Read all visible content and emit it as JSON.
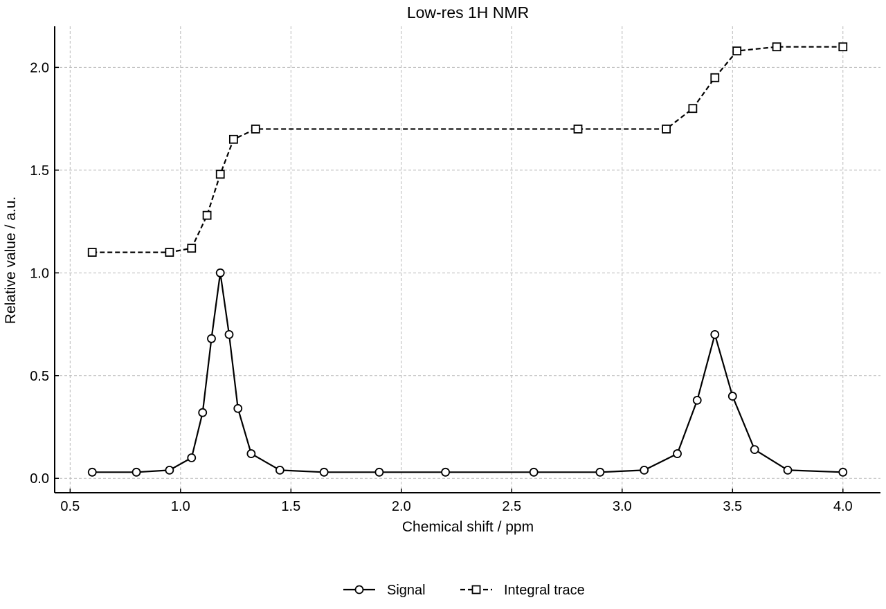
{
  "chart_data": {
    "type": "line",
    "title": "Low-res 1H NMR",
    "xlabel": "Chemical shift / ppm",
    "ylabel": "Relative value / a.u.",
    "xlim": [
      0.43,
      4.17
    ],
    "ylim": [
      -0.07,
      2.2
    ],
    "x_ticks": [
      0.5,
      1.0,
      1.5,
      2.0,
      2.5,
      3.0,
      3.5,
      4.0
    ],
    "x_tick_labels": [
      "0.5",
      "1.0",
      "1.5",
      "2.0",
      "2.5",
      "3.0",
      "3.5",
      "4.0"
    ],
    "y_ticks": [
      0.0,
      0.5,
      1.0,
      1.5,
      2.0
    ],
    "y_tick_labels": [
      "0.0",
      "0.5",
      "1.0",
      "1.5",
      "2.0"
    ],
    "grid": true,
    "legend_position": "bottom-center",
    "series": [
      {
        "name": "Signal",
        "marker": "circle",
        "line_style": "solid",
        "color": "#000000",
        "x": [
          0.6,
          0.8,
          0.95,
          1.05,
          1.1,
          1.14,
          1.18,
          1.22,
          1.26,
          1.32,
          1.45,
          1.65,
          1.9,
          2.2,
          2.6,
          2.9,
          3.1,
          3.25,
          3.34,
          3.42,
          3.5,
          3.6,
          3.75,
          4.0
        ],
        "y": [
          0.03,
          0.03,
          0.04,
          0.1,
          0.32,
          0.68,
          1.0,
          0.7,
          0.34,
          0.12,
          0.04,
          0.03,
          0.03,
          0.03,
          0.03,
          0.03,
          0.04,
          0.12,
          0.38,
          0.7,
          0.4,
          0.14,
          0.04,
          0.03
        ]
      },
      {
        "name": "Integral trace",
        "marker": "square",
        "line_style": "dashed",
        "color": "#000000",
        "x": [
          0.6,
          0.95,
          1.05,
          1.12,
          1.18,
          1.24,
          1.34,
          2.8,
          3.2,
          3.32,
          3.42,
          3.52,
          3.7,
          4.0
        ],
        "y": [
          1.1,
          1.1,
          1.12,
          1.28,
          1.48,
          1.65,
          1.7,
          1.7,
          1.7,
          1.8,
          1.95,
          2.08,
          2.1,
          2.1
        ]
      }
    ]
  }
}
